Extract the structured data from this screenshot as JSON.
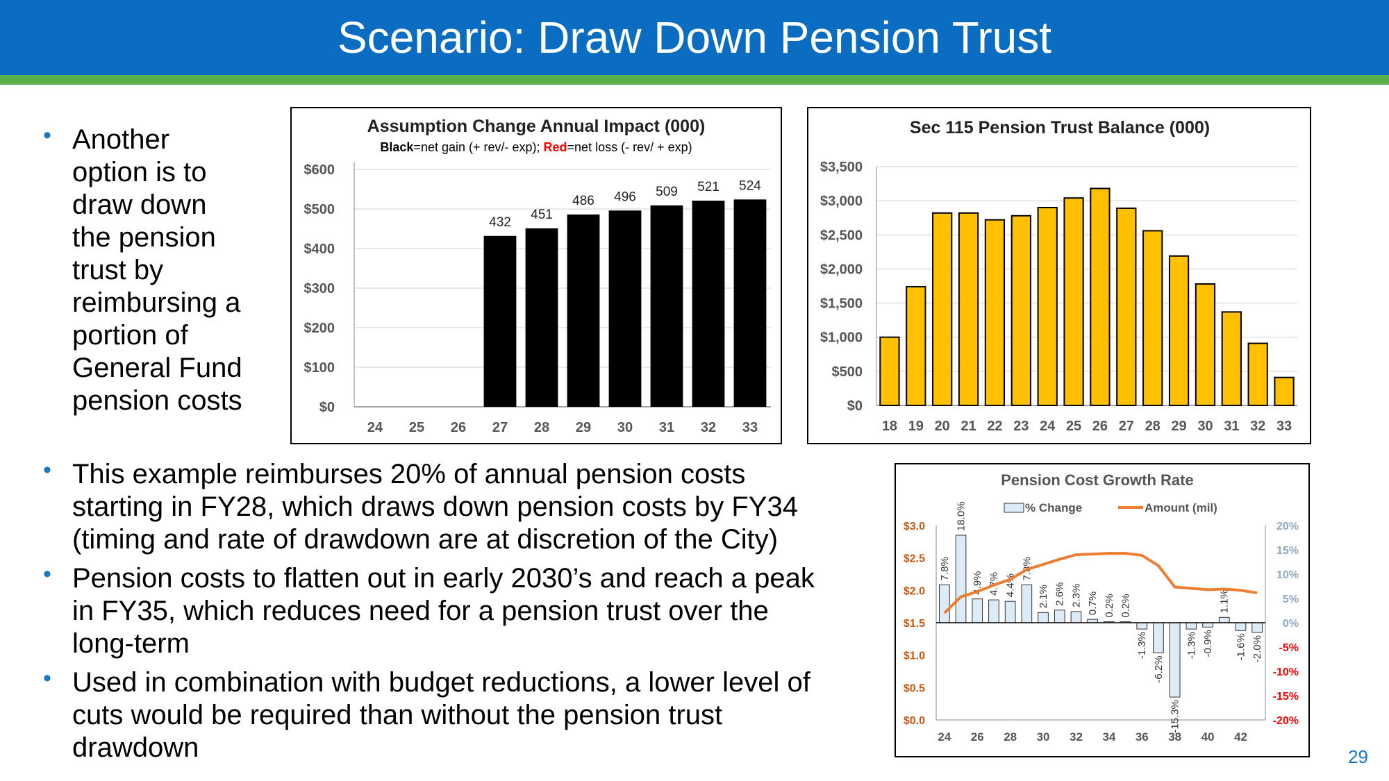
{
  "slide": {
    "title": "Scenario: Draw Down Pension Trust",
    "page_number": "29",
    "colors": {
      "title_bar": "#0a6dc1",
      "accent_bar": "#5ab04b",
      "bullet": "#1b76c4"
    }
  },
  "bullets": [
    "Another option is to draw down the pension trust by reimbursing a portion of General Fund pension costs",
    "This example reimburses 20% of annual pension costs starting in FY28, which draws down pension costs by FY34 (timing and rate of drawdown are at discretion of the City)",
    "Pension costs to flatten out in early 2030’s and reach a peak in FY35, which reduces need for a pension trust over the long-term",
    "Used in combination with budget reductions, a lower level of cuts would be required than without the pension trust drawdown"
  ],
  "bullet_lines": [
    [
      "Another",
      "option is to",
      "draw down",
      "the pension",
      "trust by",
      "reimbursing a",
      "portion of",
      "General Fund",
      "pension costs"
    ],
    [
      "This example reimburses 20% of annual pension costs",
      "starting in FY28, which draws down pension costs by FY34",
      "(timing and rate of drawdown are at discretion of the City)"
    ],
    [
      "Pension costs to flatten out in early 2030’s and reach a peak",
      "in FY35, which reduces need for a pension trust over the",
      "long-term"
    ],
    [
      "Used in combination with budget reductions, a lower level of",
      "cuts would be required than without the pension trust",
      "drawdown"
    ]
  ],
  "chart_data": [
    {
      "type": "bar",
      "title": "Assumption Change Annual Impact (000)",
      "subtitle_parts": [
        {
          "text": "Black",
          "bold": true,
          "color": "#000000"
        },
        {
          "text": "=net gain (+ rev/- exp); ",
          "bold": false,
          "color": "#000000"
        },
        {
          "text": "Red",
          "bold": true,
          "color": "#ff0000"
        },
        {
          "text": "=net loss (- rev/ + exp)",
          "bold": false,
          "color": "#000000"
        }
      ],
      "categories": [
        "24",
        "25",
        "26",
        "27",
        "28",
        "29",
        "30",
        "31",
        "32",
        "33"
      ],
      "values": [
        0,
        0,
        0,
        432,
        451,
        486,
        496,
        509,
        521,
        524
      ],
      "data_labels": [
        "",
        "",
        "",
        "432",
        "451",
        "486",
        "496",
        "509",
        "521",
        "524"
      ],
      "ylim": [
        0,
        600
      ],
      "yticks": [
        0,
        100,
        200,
        300,
        400,
        500,
        600
      ],
      "ytick_labels": [
        "$0",
        "$100",
        "$200",
        "$300",
        "$400",
        "$500",
        "$600"
      ],
      "bar_color": "#000000",
      "grid": true
    },
    {
      "type": "bar",
      "title": "Sec 115 Pension Trust Balance (000)",
      "categories": [
        "18",
        "19",
        "20",
        "21",
        "22",
        "23",
        "24",
        "25",
        "26",
        "27",
        "28",
        "29",
        "30",
        "31",
        "32",
        "33"
      ],
      "values": [
        1000,
        1740,
        2820,
        2820,
        2720,
        2780,
        2900,
        3040,
        3180,
        2890,
        2560,
        2190,
        1780,
        1370,
        910,
        410
      ],
      "ylim": [
        0,
        3500
      ],
      "yticks": [
        0,
        500,
        1000,
        1500,
        2000,
        2500,
        3000,
        3500
      ],
      "ytick_labels": [
        "$0",
        "$500",
        "$1,000",
        "$1,500",
        "$2,000",
        "$2,500",
        "$3,000",
        "$3,500"
      ],
      "bar_color": "#ffc000",
      "grid": true
    },
    {
      "type": "bar+line",
      "title": "Pension Cost Growth Rate",
      "legend": [
        "% Change",
        "Amount (mil)"
      ],
      "x": [
        24,
        25,
        26,
        27,
        28,
        29,
        30,
        31,
        32,
        33,
        34,
        35,
        36,
        37,
        38,
        39,
        40,
        41,
        42,
        43
      ],
      "xtick_labels": [
        "24",
        "26",
        "28",
        "30",
        "32",
        "34",
        "36",
        "38",
        "40",
        "42"
      ],
      "pct_change": [
        7.8,
        18.0,
        4.9,
        4.7,
        4.4,
        7.8,
        2.1,
        2.6,
        2.3,
        0.7,
        0.2,
        0.2,
        -1.3,
        -6.2,
        -15.3,
        -1.3,
        -0.9,
        1.1,
        -1.6,
        -2.0
      ],
      "pct_labels": [
        "7.8%",
        "18.0%",
        "4.9%",
        "4.7%",
        "4.4%",
        "7.8%",
        "2.1%",
        "2.6%",
        "2.3%",
        "0.7%",
        "0.2%",
        "0.2%",
        "-1.3%",
        "-6.2%",
        "-15.3%",
        "-1.3%",
        "-0.9%",
        "1.1%",
        "-1.6%",
        "-2.0%"
      ],
      "amount": [
        1.65,
        1.9,
        1.98,
        2.08,
        2.17,
        2.32,
        2.4,
        2.48,
        2.55,
        2.56,
        2.57,
        2.57,
        2.54,
        2.38,
        2.05,
        2.03,
        2.01,
        2.02,
        2.0,
        1.96
      ],
      "y_left": {
        "lim": [
          0,
          3
        ],
        "ticks": [
          0,
          0.5,
          1,
          1.5,
          2,
          2.5,
          3
        ],
        "labels": [
          "$0.0",
          "$0.5",
          "$1.0",
          "$1.5",
          "$2.0",
          "$2.5",
          "$3.0"
        ],
        "color": "#c55a11"
      },
      "y_right": {
        "lim": [
          -20,
          20
        ],
        "ticks": [
          -20,
          -15,
          -10,
          -5,
          0,
          5,
          10,
          15,
          20
        ],
        "labels": [
          "-20%",
          "-15%",
          "-10%",
          "-5%",
          "0%",
          "5%",
          "10%",
          "15%",
          "20%"
        ],
        "pos_color": "#8ea9c1",
        "neg_color": "#ff0000"
      },
      "bar_color": "#ddebf7",
      "line_color": "#ed7d31"
    }
  ]
}
